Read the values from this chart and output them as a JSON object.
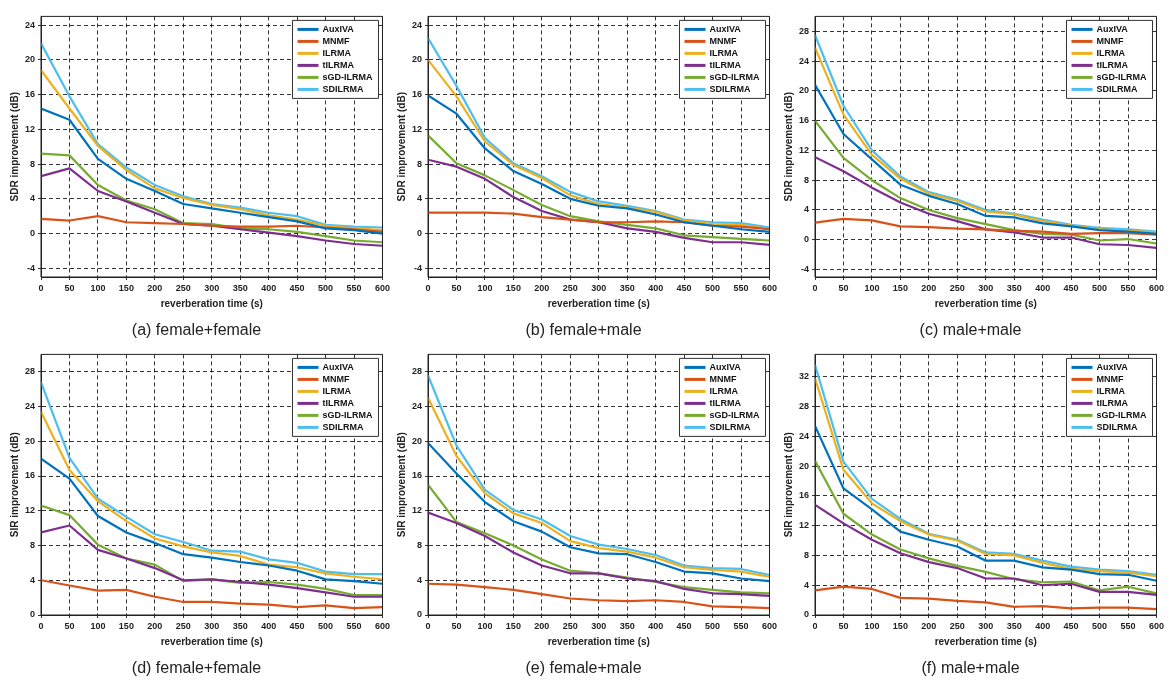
{
  "chart_data": [
    {
      "type": "line",
      "title": "(a) female+female",
      "xlabel": "reverberation time (s)",
      "ylabel": "SDR improvement (dB)",
      "x": [
        0,
        50,
        100,
        150,
        200,
        250,
        300,
        350,
        400,
        450,
        500,
        550,
        600
      ],
      "xlim": [
        0,
        600
      ],
      "xticks": [
        0,
        50,
        100,
        150,
        200,
        250,
        300,
        350,
        400,
        450,
        500,
        550,
        600
      ],
      "ylim": [
        -5,
        25
      ],
      "yticks": [
        -4,
        0,
        4,
        8,
        12,
        16,
        20,
        24
      ],
      "grid": true,
      "legend": "top right",
      "series": [
        {
          "name": "AuxIVA",
          "color": "#0072bd",
          "values": [
            14.4,
            13.1,
            8.6,
            6.3,
            4.9,
            3.4,
            2.9,
            2.4,
            1.9,
            1.4,
            0.6,
            0.4,
            0.0
          ]
        },
        {
          "name": "MNMF",
          "color": "#d95319",
          "values": [
            1.7,
            1.5,
            2.0,
            1.3,
            1.2,
            1.1,
            0.9,
            0.8,
            0.8,
            0.9,
            0.7,
            0.5,
            0.2
          ]
        },
        {
          "name": "ILRMA",
          "color": "#edb120",
          "values": [
            18.8,
            14.4,
            10.1,
            7.3,
            5.2,
            4.1,
            3.3,
            2.8,
            2.1,
            1.6,
            0.9,
            0.6,
            0.4
          ]
        },
        {
          "name": "tILRMA",
          "color": "#7e2f8e",
          "values": [
            6.6,
            7.5,
            4.9,
            3.7,
            2.4,
            1.1,
            0.9,
            0.5,
            0.1,
            -0.3,
            -0.8,
            -1.2,
            -1.4
          ]
        },
        {
          "name": "sGD-ILRMA",
          "color": "#77ac30",
          "values": [
            9.2,
            9.0,
            5.6,
            3.8,
            2.8,
            1.2,
            1.1,
            0.6,
            0.5,
            0.2,
            -0.3,
            -0.8,
            -1.0
          ]
        },
        {
          "name": "SDILRMA",
          "color": "#4dbeee",
          "values": [
            21.9,
            15.8,
            10.3,
            7.6,
            5.6,
            4.3,
            3.4,
            3.0,
            2.4,
            2.0,
            1.0,
            0.8,
            0.7
          ]
        }
      ]
    },
    {
      "type": "line",
      "title": "(b) female+male",
      "xlabel": "reverberation time (s)",
      "ylabel": "SDR improvement (dB)",
      "x": [
        0,
        50,
        100,
        150,
        200,
        250,
        300,
        350,
        400,
        450,
        500,
        550,
        600
      ],
      "xlim": [
        0,
        600
      ],
      "xticks": [
        0,
        50,
        100,
        150,
        200,
        250,
        300,
        350,
        400,
        450,
        500,
        550,
        600
      ],
      "ylim": [
        -5,
        25
      ],
      "yticks": [
        -4,
        0,
        4,
        8,
        12,
        16,
        20,
        24
      ],
      "grid": true,
      "legend": "top right",
      "series": [
        {
          "name": "AuxIVA",
          "color": "#0072bd",
          "values": [
            15.9,
            13.8,
            9.8,
            7.2,
            5.7,
            4.0,
            3.2,
            2.9,
            2.2,
            1.3,
            0.9,
            0.5,
            0.2
          ]
        },
        {
          "name": "MNMF",
          "color": "#d95319",
          "values": [
            2.4,
            2.4,
            2.4,
            2.3,
            1.9,
            1.6,
            1.3,
            1.3,
            1.4,
            1.3,
            0.9,
            0.8,
            0.5
          ]
        },
        {
          "name": "ILRMA",
          "color": "#edb120",
          "values": [
            20.0,
            15.8,
            10.6,
            7.9,
            6.4,
            4.4,
            3.4,
            3.0,
            2.5,
            1.5,
            1.1,
            1.0,
            0.5
          ]
        },
        {
          "name": "tILRMA",
          "color": "#7e2f8e",
          "values": [
            8.5,
            7.7,
            6.3,
            4.2,
            2.6,
            1.6,
            1.3,
            0.6,
            0.2,
            -0.5,
            -1.0,
            -1.0,
            -1.3
          ]
        },
        {
          "name": "sGD-ILRMA",
          "color": "#77ac30",
          "values": [
            11.3,
            8.1,
            6.7,
            5.0,
            3.3,
            2.0,
            1.4,
            1.0,
            0.6,
            -0.2,
            -0.4,
            -0.6,
            -0.8
          ]
        },
        {
          "name": "SDILRMA",
          "color": "#4dbeee",
          "values": [
            22.5,
            17.0,
            11.0,
            8.1,
            6.6,
            4.8,
            3.7,
            3.2,
            2.6,
            1.6,
            1.3,
            1.2,
            0.7
          ]
        }
      ]
    },
    {
      "type": "line",
      "title": "(c) male+male",
      "xlabel": "reverberation time (s)",
      "ylabel": "SDR improvement (dB)",
      "x": [
        0,
        50,
        100,
        150,
        200,
        250,
        300,
        350,
        400,
        450,
        500,
        550,
        600
      ],
      "xlim": [
        0,
        600
      ],
      "xticks": [
        0,
        50,
        100,
        150,
        200,
        250,
        300,
        350,
        400,
        450,
        500,
        550,
        600
      ],
      "ylim": [
        -5,
        30
      ],
      "yticks": [
        -4,
        0,
        4,
        8,
        12,
        16,
        20,
        24,
        28
      ],
      "grid": true,
      "legend": "top right",
      "series": [
        {
          "name": "AuxIVA",
          "color": "#0072bd",
          "values": [
            20.8,
            14.2,
            10.8,
            7.4,
            5.9,
            4.8,
            3.2,
            3.0,
            2.2,
            1.8,
            1.3,
            1.1,
            0.8
          ]
        },
        {
          "name": "MNMF",
          "color": "#d95319",
          "values": [
            2.3,
            2.8,
            2.6,
            1.8,
            1.7,
            1.5,
            1.4,
            1.2,
            1.1,
            0.8,
            0.9,
            0.9,
            0.7
          ]
        },
        {
          "name": "ILRMA",
          "color": "#edb120",
          "values": [
            25.8,
            16.8,
            11.4,
            8.2,
            6.2,
            5.2,
            3.8,
            3.4,
            2.5,
            1.9,
            1.4,
            1.2,
            1.0
          ]
        },
        {
          "name": "tILRMA",
          "color": "#7e2f8e",
          "values": [
            11.1,
            9.2,
            7.0,
            5.0,
            3.5,
            2.5,
            1.4,
            1.0,
            0.3,
            0.3,
            -0.6,
            -0.7,
            -1.1
          ]
        },
        {
          "name": "sGD-ILRMA",
          "color": "#77ac30",
          "values": [
            16.0,
            11.0,
            8.0,
            5.6,
            4.0,
            2.9,
            2.1,
            1.3,
            0.8,
            0.7,
            -0.1,
            0.1,
            -0.5
          ]
        },
        {
          "name": "SDILRMA",
          "color": "#4dbeee",
          "values": [
            27.5,
            18.0,
            12.0,
            8.5,
            6.4,
            5.4,
            4.0,
            3.5,
            2.7,
            2.0,
            1.6,
            1.4,
            1.1
          ]
        }
      ]
    },
    {
      "type": "line",
      "title": "(d) female+female",
      "xlabel": "reverberation time (s)",
      "ylabel": "SIR improvement (dB)",
      "x": [
        0,
        50,
        100,
        150,
        200,
        250,
        300,
        350,
        400,
        450,
        500,
        550,
        600
      ],
      "xlim": [
        0,
        600
      ],
      "xticks": [
        0,
        50,
        100,
        150,
        200,
        250,
        300,
        350,
        400,
        450,
        500,
        550,
        600
      ],
      "ylim": [
        0,
        30
      ],
      "yticks": [
        0,
        4,
        8,
        12,
        16,
        20,
        24,
        28
      ],
      "grid": true,
      "legend": "top right",
      "series": [
        {
          "name": "AuxIVA",
          "color": "#0072bd",
          "values": [
            18.0,
            15.7,
            11.4,
            9.5,
            8.3,
            7.0,
            6.6,
            6.1,
            5.7,
            5.1,
            4.1,
            3.9,
            3.6
          ]
        },
        {
          "name": "MNMF",
          "color": "#d95319",
          "values": [
            4.0,
            3.4,
            2.8,
            2.9,
            2.1,
            1.5,
            1.5,
            1.3,
            1.2,
            0.9,
            1.1,
            0.8,
            0.9
          ]
        },
        {
          "name": "ILRMA",
          "color": "#edb120",
          "values": [
            23.4,
            16.7,
            13.1,
            10.8,
            8.8,
            7.9,
            7.2,
            6.8,
            5.8,
            5.5,
            4.8,
            4.4,
            4.1
          ]
        },
        {
          "name": "tILRMA",
          "color": "#7e2f8e",
          "values": [
            9.5,
            10.3,
            7.5,
            6.5,
            5.4,
            4.0,
            4.1,
            3.8,
            3.5,
            3.1,
            2.6,
            2.1,
            2.1
          ]
        },
        {
          "name": "sGD-ILRMA",
          "color": "#77ac30",
          "values": [
            12.6,
            11.5,
            8.1,
            6.5,
            5.8,
            3.9,
            4.1,
            3.7,
            3.8,
            3.5,
            3.0,
            2.3,
            2.3
          ]
        },
        {
          "name": "SDILRMA",
          "color": "#4dbeee",
          "values": [
            26.8,
            18.1,
            13.4,
            11.3,
            9.3,
            8.4,
            7.4,
            7.3,
            6.4,
            6.0,
            5.0,
            4.7,
            4.7
          ]
        }
      ]
    },
    {
      "type": "line",
      "title": "(e) female+male",
      "xlabel": "reverberation time (s)",
      "ylabel": "SIR improvement (dB)",
      "x": [
        0,
        50,
        100,
        150,
        200,
        250,
        300,
        350,
        400,
        450,
        500,
        550,
        600
      ],
      "xlim": [
        0,
        600
      ],
      "xticks": [
        0,
        50,
        100,
        150,
        200,
        250,
        300,
        350,
        400,
        450,
        500,
        550,
        600
      ],
      "ylim": [
        0,
        30
      ],
      "yticks": [
        0,
        4,
        8,
        12,
        16,
        20,
        24,
        28
      ],
      "grid": true,
      "legend": "top right",
      "series": [
        {
          "name": "AuxIVA",
          "color": "#0072bd",
          "values": [
            19.8,
            16.3,
            13.0,
            10.8,
            9.6,
            7.8,
            7.1,
            7.0,
            6.1,
            5.0,
            4.8,
            4.2,
            3.9
          ]
        },
        {
          "name": "MNMF",
          "color": "#d95319",
          "values": [
            3.6,
            3.5,
            3.2,
            2.9,
            2.4,
            1.9,
            1.7,
            1.6,
            1.7,
            1.5,
            1.0,
            0.9,
            0.8
          ]
        },
        {
          "name": "ILRMA",
          "color": "#edb120",
          "values": [
            25.0,
            18.3,
            14.0,
            11.7,
            10.6,
            8.5,
            7.7,
            7.3,
            6.6,
            5.5,
            5.2,
            5.0,
            4.4
          ]
        },
        {
          "name": "tILRMA",
          "color": "#7e2f8e",
          "values": [
            11.8,
            10.6,
            9.1,
            7.2,
            5.7,
            4.8,
            4.8,
            4.2,
            3.9,
            3.0,
            2.5,
            2.4,
            2.2
          ]
        },
        {
          "name": "sGD-ILRMA",
          "color": "#77ac30",
          "values": [
            15.0,
            10.7,
            9.4,
            8.0,
            6.4,
            5.1,
            4.8,
            4.3,
            3.8,
            3.2,
            2.9,
            2.6,
            2.5
          ]
        },
        {
          "name": "SDILRMA",
          "color": "#4dbeee",
          "values": [
            27.6,
            19.5,
            14.4,
            12.1,
            11.0,
            9.1,
            8.1,
            7.6,
            6.9,
            5.7,
            5.4,
            5.3,
            4.6
          ]
        }
      ]
    },
    {
      "type": "line",
      "title": "(f) male+male",
      "xlabel": "reverberation time (s)",
      "ylabel": "SIR improvement (dB)",
      "x": [
        0,
        50,
        100,
        150,
        200,
        250,
        300,
        350,
        400,
        450,
        500,
        550,
        600
      ],
      "xlim": [
        0,
        600
      ],
      "xticks": [
        0,
        50,
        100,
        150,
        200,
        250,
        300,
        350,
        400,
        450,
        500,
        550,
        600
      ],
      "ylim": [
        0,
        35
      ],
      "yticks": [
        0,
        4,
        8,
        12,
        16,
        20,
        24,
        28,
        32
      ],
      "grid": true,
      "legend": "top right",
      "series": [
        {
          "name": "AuxIVA",
          "color": "#0072bd",
          "values": [
            25.4,
            17.0,
            14.2,
            11.2,
            10.1,
            9.2,
            7.3,
            7.3,
            6.4,
            6.1,
            5.5,
            5.4,
            4.6
          ]
        },
        {
          "name": "MNMF",
          "color": "#d95319",
          "values": [
            3.3,
            3.8,
            3.5,
            2.3,
            2.2,
            1.9,
            1.7,
            1.1,
            1.2,
            0.9,
            1.0,
            1.0,
            0.8
          ]
        },
        {
          "name": "ILRMA",
          "color": "#edb120",
          "values": [
            31.8,
            19.5,
            15.0,
            12.6,
            10.8,
            10.0,
            8.2,
            8.0,
            7.0,
            6.2,
            5.9,
            5.7,
            5.2
          ]
        },
        {
          "name": "tILRMA",
          "color": "#7e2f8e",
          "values": [
            14.8,
            12.3,
            10.1,
            8.3,
            7.1,
            6.3,
            4.9,
            4.9,
            4.0,
            4.2,
            3.1,
            3.1,
            2.7
          ]
        },
        {
          "name": "sGD-ILRMA",
          "color": "#77ac30",
          "values": [
            20.7,
            13.6,
            10.8,
            8.8,
            7.6,
            6.6,
            5.8,
            4.8,
            4.4,
            4.5,
            3.3,
            3.8,
            2.9
          ]
        },
        {
          "name": "SDILRMA",
          "color": "#4dbeee",
          "values": [
            33.6,
            20.6,
            15.6,
            12.9,
            10.9,
            10.1,
            8.4,
            8.2,
            7.3,
            6.5,
            6.1,
            5.9,
            5.4
          ]
        }
      ]
    }
  ]
}
